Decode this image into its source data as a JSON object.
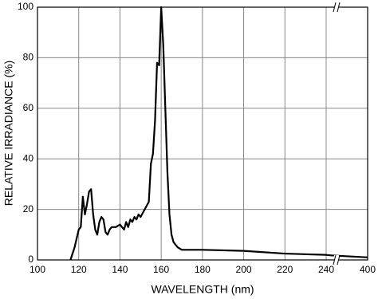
{
  "chart_data": {
    "type": "line",
    "xlabel": "WAVELENGTH (nm)",
    "ylabel": "RELATIVE IRRADIANCE (%)",
    "x": [
      116,
      118,
      120,
      121,
      122,
      123,
      124,
      125,
      126,
      127,
      128,
      129,
      130,
      131,
      132,
      133,
      134,
      135,
      136,
      138,
      140,
      141,
      142,
      143,
      144,
      145,
      146,
      147,
      148,
      149,
      150,
      152,
      154,
      155,
      156,
      157,
      158,
      159,
      160,
      161,
      162,
      163,
      164,
      165,
      166,
      168,
      170,
      180,
      200,
      220,
      240,
      260,
      400
    ],
    "values": [
      0,
      5,
      12,
      13,
      25,
      18,
      22,
      27,
      28,
      18,
      12,
      10,
      15,
      17,
      16,
      11,
      10,
      12,
      13,
      13,
      14,
      13,
      12,
      15,
      13,
      16,
      15,
      17,
      16,
      18,
      17,
      20,
      23,
      38,
      42,
      55,
      78,
      77,
      100,
      85,
      60,
      35,
      18,
      10,
      7,
      5,
      4,
      4,
      3.6,
      2.5,
      2,
      1.8,
      1
    ],
    "color": "#000000",
    "xlim": [
      100,
      400
    ],
    "ylim": [
      0,
      100
    ],
    "xticks": [
      100,
      120,
      140,
      160,
      180,
      200,
      220,
      240,
      400
    ],
    "yticks": [
      0,
      20,
      40,
      60,
      80,
      100
    ],
    "x_break": [
      240,
      400
    ],
    "grid": true
  }
}
